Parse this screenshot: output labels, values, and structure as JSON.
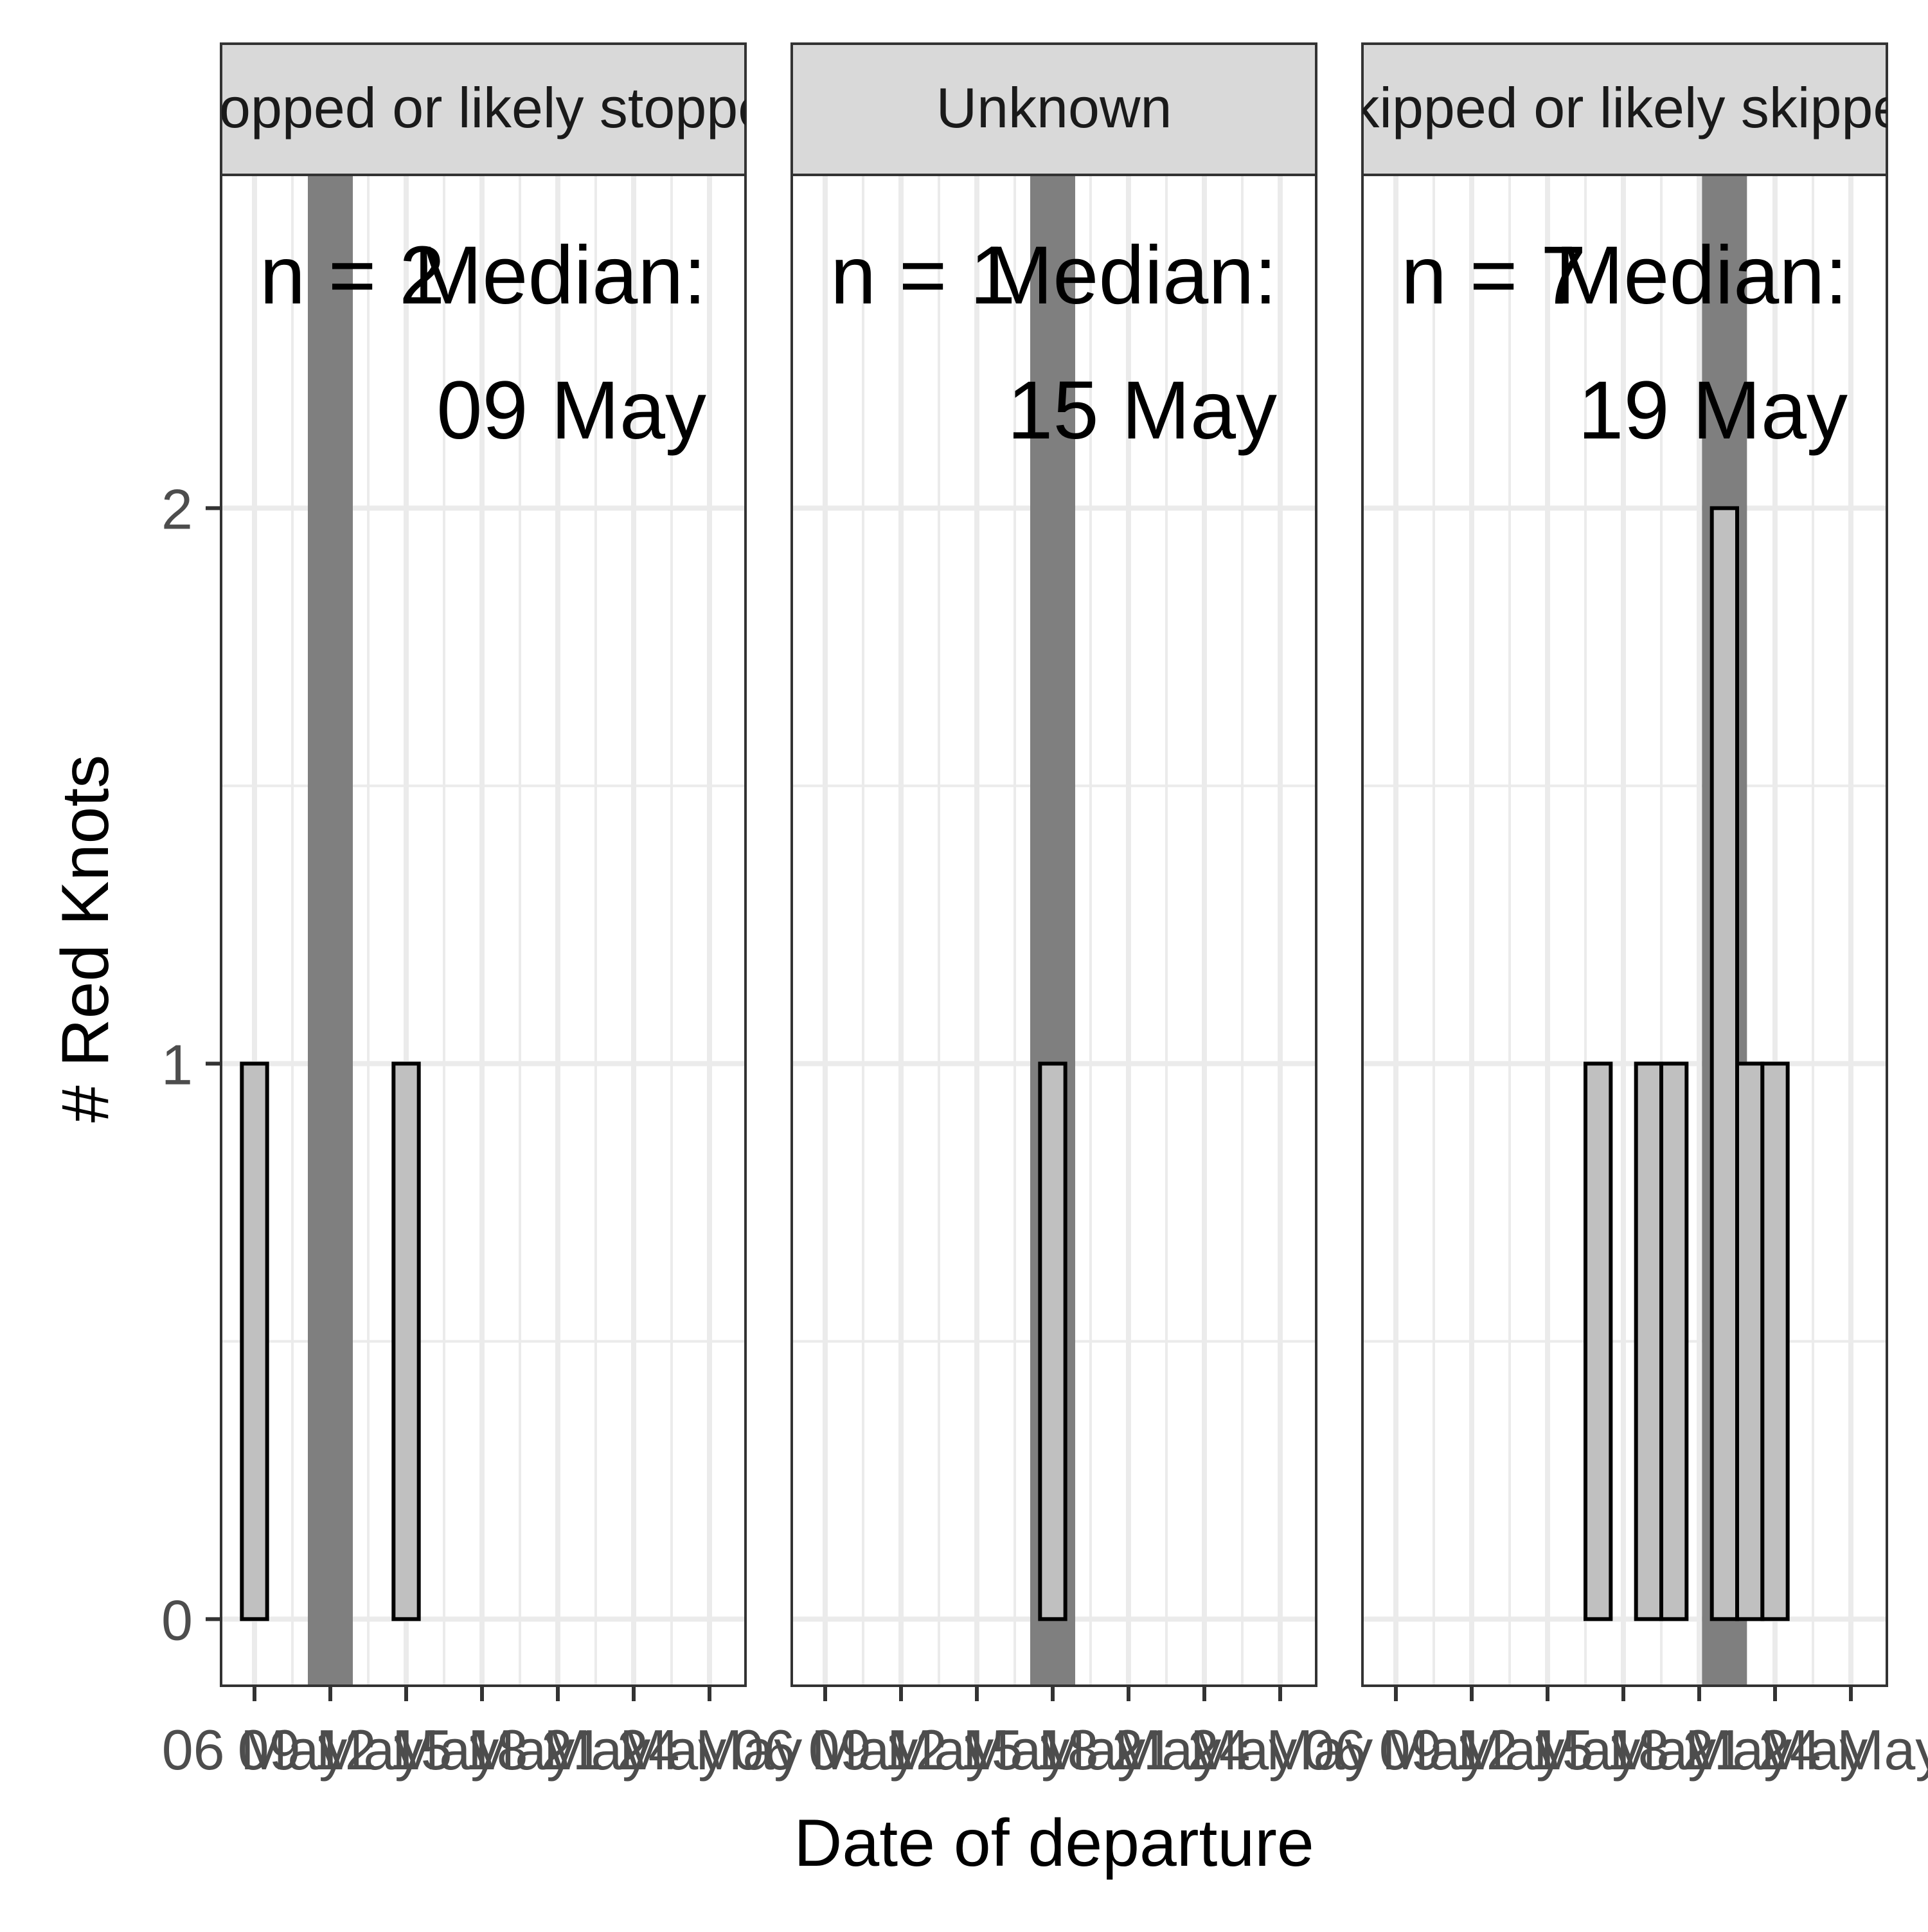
{
  "chart_data": {
    "type": "bar",
    "xlabel": "Date of departure",
    "ylabel": "# Red Knots",
    "ylim": [
      -0.12,
      2.6
    ],
    "yticks": [
      0,
      1,
      2
    ],
    "x_tick_labels": [
      "06 May",
      "09 May",
      "12 May",
      "15 May",
      "18 May",
      "21 May",
      "24 May"
    ],
    "grid": "on",
    "colors": {
      "bar_fill": "#c0c0c0",
      "bar_stroke": "#000000",
      "median_band": "#7f7f7f",
      "strip_fill": "#d9d9d9",
      "gridline": "#ebebeb",
      "panel_border": "#333333",
      "axis_text": "#4d4d4d"
    },
    "panels": [
      {
        "strip": "Stopped or likely stopped",
        "n_label": "n = 2",
        "median_label": "Median:",
        "median_date": "09 May",
        "median_day": 9,
        "bins": [
          {
            "day": 6,
            "count": 1
          },
          {
            "day": 12,
            "count": 1
          }
        ]
      },
      {
        "strip": "Unknown",
        "n_label": "n = 1",
        "median_label": "Median:",
        "median_date": "15 May",
        "median_day": 15,
        "bins": [
          {
            "day": 15,
            "count": 1
          }
        ]
      },
      {
        "strip": "Skipped or likely skipped",
        "n_label": "n = 7",
        "median_label": "Median:",
        "median_date": "19 May",
        "median_day": 19,
        "bins": [
          {
            "day": 14,
            "count": 1
          },
          {
            "day": 16,
            "count": 1
          },
          {
            "day": 17,
            "count": 1
          },
          {
            "day": 19,
            "count": 2
          },
          {
            "day": 20,
            "count": 1
          },
          {
            "day": 21,
            "count": 1
          }
        ]
      }
    ]
  }
}
